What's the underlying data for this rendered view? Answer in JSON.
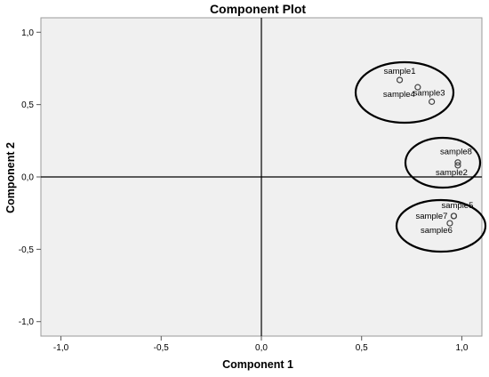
{
  "chart_data": {
    "type": "scatter",
    "title": "Component Plot",
    "xlabel": "Component 1",
    "ylabel": "Component 2",
    "xlim": [
      -1.1,
      1.1
    ],
    "ylim": [
      -1.1,
      1.1
    ],
    "xticks": [
      "-1,0",
      "-0,5",
      "0,0",
      "0,5",
      "1,0"
    ],
    "xtick_values": [
      -1.0,
      -0.5,
      0.0,
      0.5,
      1.0
    ],
    "yticks": [
      "1,0",
      "0,5",
      "0,0",
      "-0,5",
      "-1,0"
    ],
    "ytick_values": [
      1.0,
      0.5,
      0.0,
      -0.5,
      -1.0
    ],
    "grid": false,
    "reference_lines": [
      {
        "axis": "x",
        "value": 0
      },
      {
        "axis": "y",
        "value": 0
      }
    ],
    "points": [
      {
        "label": "sample1",
        "x": 0.69,
        "y": 0.67
      },
      {
        "label": "sample4",
        "x": 0.78,
        "y": 0.62
      },
      {
        "label": "sample3",
        "x": 0.85,
        "y": 0.52
      },
      {
        "label": "sample8",
        "x": 0.98,
        "y": 0.1
      },
      {
        "label": "sample2",
        "x": 0.98,
        "y": 0.08
      },
      {
        "label": "sample5",
        "x": 0.96,
        "y": -0.27
      },
      {
        "label": "sample7",
        "x": 0.96,
        "y": -0.27
      },
      {
        "label": "sample6",
        "x": 0.94,
        "y": -0.32
      }
    ],
    "clusters": [
      {
        "members": [
          "sample1",
          "sample4",
          "sample3"
        ]
      },
      {
        "members": [
          "sample8",
          "sample2"
        ]
      },
      {
        "members": [
          "sample5",
          "sample7",
          "sample6"
        ]
      }
    ],
    "colors": {
      "plot_background": "#f0f0f0",
      "marker": "#444444",
      "axis": "#000000"
    }
  }
}
